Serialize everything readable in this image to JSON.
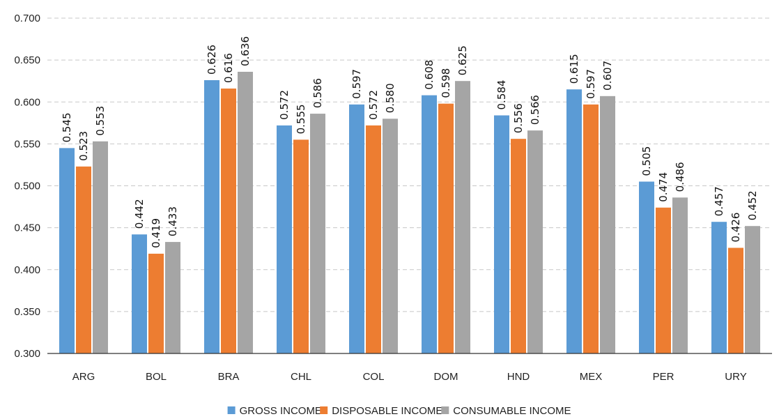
{
  "chart_data": {
    "type": "bar",
    "title": "",
    "xlabel": "",
    "ylabel": "",
    "ylim": [
      0.3,
      0.7
    ],
    "yticks": [
      "0.300",
      "0.350",
      "0.400",
      "0.450",
      "0.500",
      "0.550",
      "0.600",
      "0.650",
      "0.700"
    ],
    "grid": "horizontal dashed",
    "legend_position": "bottom",
    "categories": [
      "ARG",
      "BOL",
      "BRA",
      "CHL",
      "COL",
      "DOM",
      "HND",
      "MEX",
      "PER",
      "URY"
    ],
    "series": [
      {
        "name": "GROSS INCOME",
        "color": "#5B9BD5",
        "values": [
          0.545,
          0.442,
          0.626,
          0.572,
          0.597,
          0.608,
          0.584,
          0.615,
          0.505,
          0.457
        ],
        "labels": [
          "0.545",
          "0.442",
          "0.626",
          "0.572",
          "0.597",
          "0.608",
          "0.584",
          "0.615",
          "0.505",
          "0.457"
        ]
      },
      {
        "name": "DISPOSABLE INCOME",
        "color": "#ED7D31",
        "values": [
          0.523,
          0.419,
          0.616,
          0.555,
          0.572,
          0.598,
          0.556,
          0.597,
          0.474,
          0.426
        ],
        "labels": [
          "0.523",
          "0.419",
          "0.616",
          "0.555",
          "0.572",
          "0.598",
          "0.556",
          "0.597",
          "0.474",
          "0.426"
        ]
      },
      {
        "name": "CONSUMABLE INCOME",
        "color": "#A5A5A5",
        "values": [
          0.553,
          0.433,
          0.636,
          0.586,
          0.58,
          0.625,
          0.566,
          0.607,
          0.486,
          0.452
        ],
        "labels": [
          "0.553",
          "0.433",
          "0.636",
          "0.586",
          "0.580",
          "0.625",
          "0.566",
          "0.607",
          "0.486",
          "0.452"
        ]
      }
    ]
  }
}
